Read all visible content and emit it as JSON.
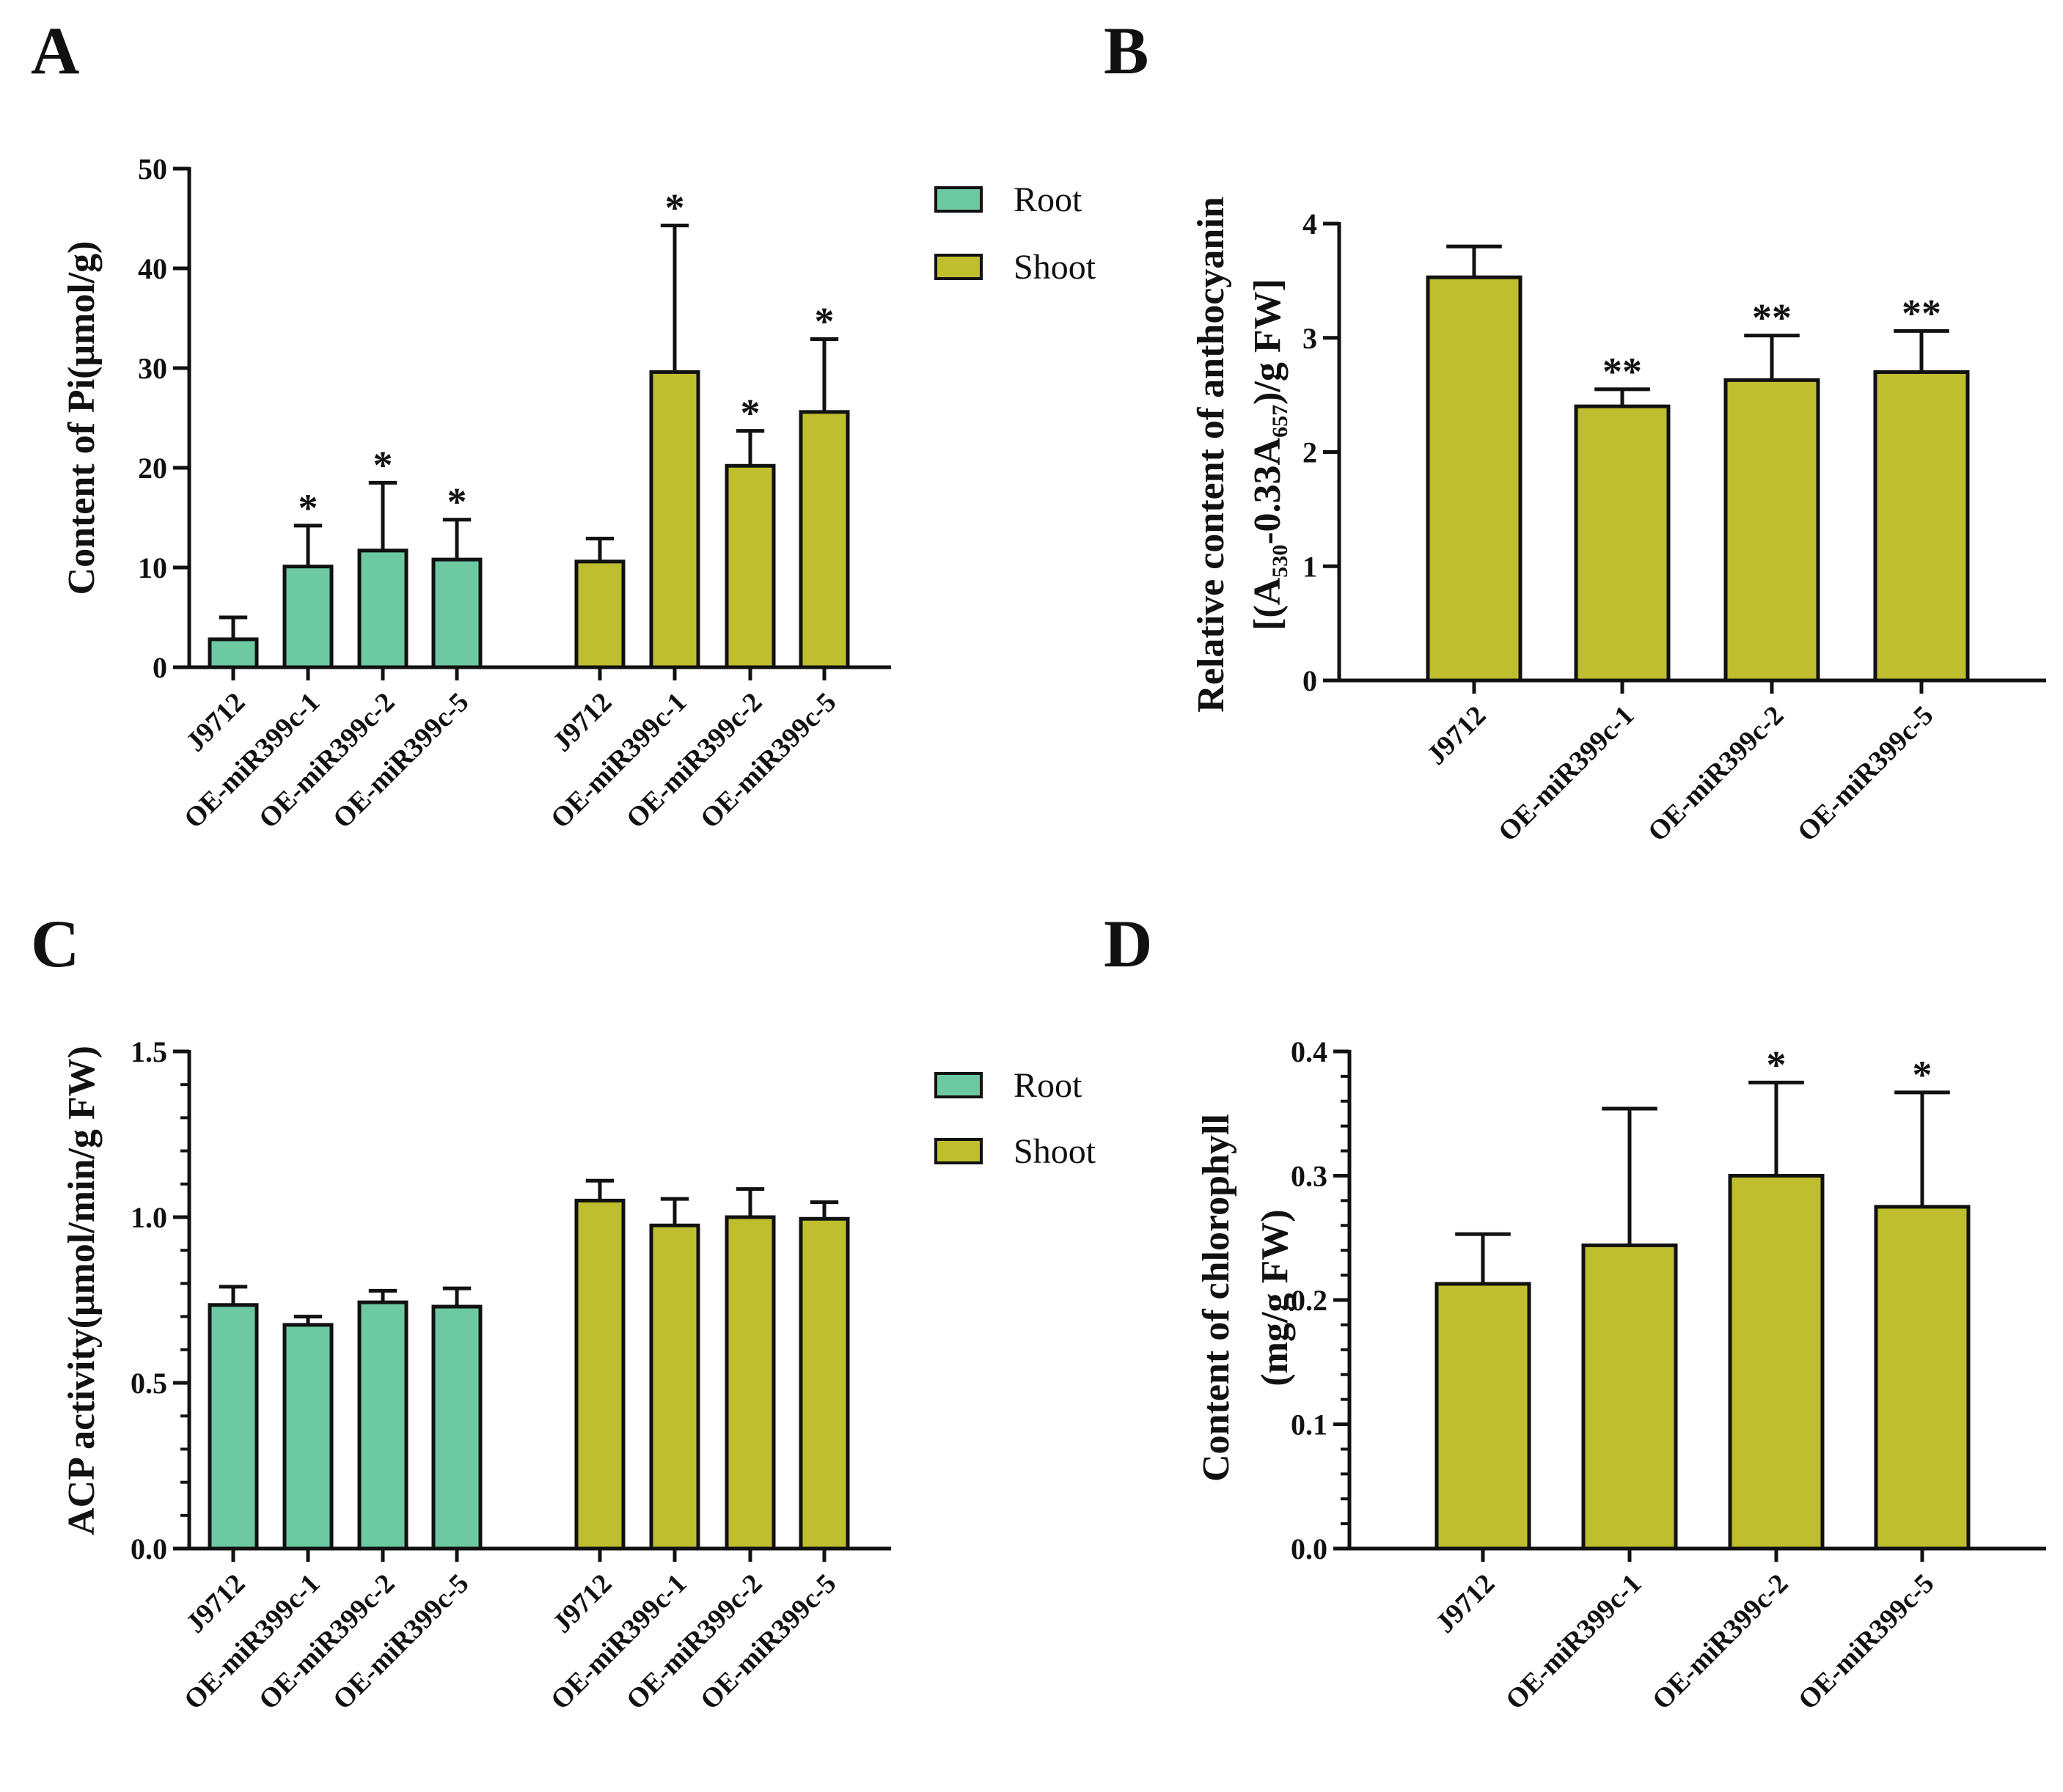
{
  "colors": {
    "root": "#6dc9a2",
    "shoot": "#bebe2e",
    "ink": "#111111"
  },
  "legend": {
    "root_label": "Root",
    "shoot_label": "Shoot"
  },
  "chart_data": [
    {
      "panel": "A",
      "type": "bar",
      "ylabel": "Content of Pi(μmol/g)",
      "ylim": [
        0,
        50
      ],
      "yticks": [
        "0",
        "10",
        "20",
        "30",
        "40",
        "50"
      ],
      "legend": "right",
      "categories": [
        "J9712",
        "OE-miR399c-1",
        "OE-miR399c-2",
        "OE-miR399c-5"
      ],
      "series": [
        {
          "name": "Root",
          "values": [
            2.8,
            10.1,
            11.7,
            10.8
          ],
          "errors": [
            2.2,
            4.1,
            6.8,
            4.0
          ],
          "sig": [
            "",
            "*",
            "*",
            "*"
          ]
        },
        {
          "name": "Shoot",
          "values": [
            10.6,
            29.6,
            20.2,
            25.6
          ],
          "errors": [
            2.3,
            14.7,
            3.5,
            7.3
          ],
          "sig": [
            "",
            "*",
            "*",
            "*"
          ]
        }
      ]
    },
    {
      "panel": "B",
      "type": "bar",
      "ylabel": "Relative content of anthocyanin",
      "ylabel2": "[(A530-0.33A657)/g FW]",
      "ylabel2_parts": [
        "[(A",
        "530",
        "-0.33A",
        "657",
        ")/g FW]"
      ],
      "ylim": [
        0,
        4
      ],
      "yticks": [
        "0",
        "1",
        "2",
        "3",
        "4"
      ],
      "categories": [
        "J9712",
        "OE-miR399c-1",
        "OE-miR399c-2",
        "OE-miR399c-5"
      ],
      "series": [
        {
          "name": "Shoot",
          "values": [
            3.53,
            2.4,
            2.63,
            2.7
          ],
          "errors": [
            0.27,
            0.15,
            0.39,
            0.36
          ],
          "sig": [
            "",
            "**",
            "**",
            "**"
          ]
        }
      ]
    },
    {
      "panel": "C",
      "type": "bar",
      "ylabel": "ACP activity(μmol/min/g FW)",
      "ylim": [
        0,
        1.5
      ],
      "yticks": [
        "0.0",
        "0.5",
        "1.0",
        "1.5"
      ],
      "legend": "right",
      "categories": [
        "J9712",
        "OE-miR399c-1",
        "OE-miR399c-2",
        "OE-miR399c-5"
      ],
      "series": [
        {
          "name": "Root",
          "values": [
            0.735,
            0.675,
            0.743,
            0.73
          ],
          "errors": [
            0.055,
            0.025,
            0.035,
            0.055
          ],
          "sig": [
            "",
            "",
            "",
            ""
          ]
        },
        {
          "name": "Shoot",
          "values": [
            1.05,
            0.975,
            1.0,
            0.995
          ],
          "errors": [
            0.06,
            0.08,
            0.085,
            0.05
          ],
          "sig": [
            "",
            "",
            "",
            ""
          ]
        }
      ]
    },
    {
      "panel": "D",
      "type": "bar",
      "ylabel": "Content of chlorophyll",
      "ylabel2": "(mg/g FW)",
      "ylim": [
        0,
        0.4
      ],
      "yticks": [
        "0.0",
        "0.1",
        "0.2",
        "0.3",
        "0.4"
      ],
      "categories": [
        "J9712",
        "OE-miR399c-1",
        "OE-miR399c-2",
        "OE-miR399c-5"
      ],
      "series": [
        {
          "name": "Shoot",
          "values": [
            0.213,
            0.244,
            0.3,
            0.275
          ],
          "errors": [
            0.04,
            0.11,
            0.075,
            0.092
          ],
          "sig": [
            "",
            "",
            "*",
            "*"
          ]
        }
      ]
    }
  ]
}
